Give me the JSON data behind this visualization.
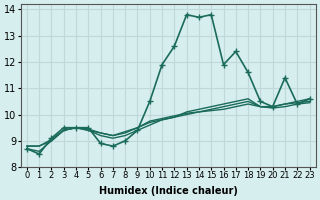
{
  "xlabel": "Humidex (Indice chaleur)",
  "ylabel": "",
  "xlim": [
    -0.5,
    23.5
  ],
  "ylim": [
    8,
    14.2
  ],
  "yticks": [
    8,
    9,
    10,
    11,
    12,
    13,
    14
  ],
  "xtick_labels": [
    "0",
    "1",
    "2",
    "3",
    "4",
    "5",
    "6",
    "7",
    "8",
    "9",
    "10",
    "11",
    "12",
    "13",
    "14",
    "15",
    "16",
    "17",
    "18",
    "19",
    "20",
    "21",
    "22",
    "23"
  ],
  "background_color": "#d6eeee",
  "grid_color": "#c0d8d8",
  "line_color": "#1a6b5a",
  "series": [
    [
      8.7,
      8.5,
      9.1,
      9.5,
      9.5,
      9.5,
      8.9,
      8.8,
      9.0,
      9.4,
      10.5,
      11.9,
      12.6,
      13.8,
      13.7,
      13.8,
      11.9,
      12.4,
      11.6,
      10.5,
      10.3,
      11.4,
      10.4,
      10.6
    ],
    [
      8.7,
      8.6,
      9.0,
      9.4,
      9.5,
      9.4,
      9.2,
      9.1,
      9.2,
      9.4,
      9.6,
      9.8,
      9.9,
      10.1,
      10.2,
      10.3,
      10.4,
      10.5,
      10.6,
      10.3,
      10.3,
      10.4,
      10.5,
      10.6
    ],
    [
      8.8,
      8.8,
      9.0,
      9.4,
      9.5,
      9.4,
      9.3,
      9.2,
      9.3,
      9.5,
      9.7,
      9.8,
      9.9,
      10.0,
      10.1,
      10.2,
      10.3,
      10.4,
      10.5,
      10.3,
      10.3,
      10.4,
      10.45,
      10.5
    ],
    [
      8.8,
      8.8,
      9.05,
      9.4,
      9.5,
      9.45,
      9.3,
      9.2,
      9.35,
      9.5,
      9.75,
      9.85,
      9.95,
      10.05,
      10.1,
      10.15,
      10.2,
      10.3,
      10.4,
      10.3,
      10.25,
      10.3,
      10.4,
      10.45
    ]
  ]
}
